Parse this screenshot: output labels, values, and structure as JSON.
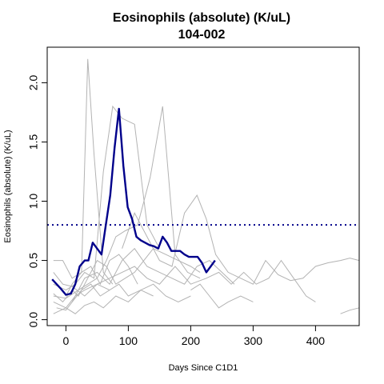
{
  "chart_data": {
    "type": "line",
    "title": "Eosinophils (absolute) (K/uL)",
    "subtitle": "104-002",
    "xlabel": "Days Since C1D1",
    "ylabel": "Eosinophils (absolute) (K/uL)",
    "xlim": [
      -30,
      470
    ],
    "ylim": [
      -0.05,
      2.3
    ],
    "x_ticks": [
      0,
      100,
      200,
      300,
      400
    ],
    "y_ticks": [
      0.0,
      0.5,
      1.0,
      1.5,
      2.0
    ],
    "x_tick_labels": [
      "0",
      "100",
      "200",
      "300",
      "400"
    ],
    "y_tick_labels": [
      "0.0",
      "0.5",
      "1.0",
      "1.5",
      "2.0"
    ],
    "reference_line": {
      "y": 0.8,
      "style": "dotted",
      "color": "#00008B"
    },
    "grid": false,
    "legend": "none",
    "colors": {
      "highlight": "#00008B",
      "background_series": "#b3b3b3",
      "frame": "#000000"
    },
    "highlight_series": {
      "x": [
        -22,
        -8,
        0,
        8,
        15,
        22,
        30,
        36,
        43,
        50,
        57,
        64,
        71,
        78,
        85,
        92,
        99,
        106,
        113,
        120,
        134,
        141,
        148,
        155,
        162,
        169,
        176,
        183,
        190,
        197,
        204,
        211,
        218,
        225,
        232,
        239
      ],
      "y": [
        0.34,
        0.26,
        0.21,
        0.22,
        0.3,
        0.45,
        0.5,
        0.5,
        0.65,
        0.6,
        0.55,
        0.8,
        1.05,
        1.45,
        1.78,
        1.3,
        0.95,
        0.85,
        0.7,
        0.67,
        0.63,
        0.62,
        0.6,
        0.7,
        0.65,
        0.58,
        0.58,
        0.58,
        0.55,
        0.53,
        0.53,
        0.53,
        0.48,
        0.4,
        0.45,
        0.5
      ]
    },
    "background_series": [
      {
        "x": [
          -20,
          -5,
          10,
          25,
          35,
          45,
          60,
          75
        ],
        "y": [
          0.5,
          0.5,
          0.35,
          0.4,
          2.2,
          1.4,
          0.4,
          0.3
        ]
      },
      {
        "x": [
          -20,
          0,
          15,
          30,
          45,
          60,
          75,
          90,
          110,
          130,
          150
        ],
        "y": [
          0.3,
          0.25,
          0.3,
          0.4,
          0.35,
          1.25,
          1.8,
          1.7,
          1.65,
          0.8,
          0.6
        ]
      },
      {
        "x": [
          -20,
          0,
          20,
          35,
          50,
          65,
          80,
          95,
          115,
          135,
          155,
          175,
          195,
          215
        ],
        "y": [
          0.2,
          0.18,
          0.25,
          0.3,
          0.35,
          0.5,
          0.7,
          0.75,
          0.8,
          1.2,
          1.8,
          0.55,
          0.4,
          0.35
        ]
      },
      {
        "x": [
          90,
          110,
          130,
          150,
          170,
          190,
          210,
          225,
          240,
          260,
          280,
          300,
          320,
          340,
          360,
          380,
          400,
          420,
          440,
          455,
          470
        ],
        "y": [
          0.6,
          0.9,
          0.7,
          0.5,
          0.45,
          0.9,
          1.05,
          0.85,
          0.55,
          0.4,
          0.35,
          0.3,
          0.5,
          0.38,
          0.33,
          0.35,
          0.45,
          0.48,
          0.5,
          0.52,
          0.5
        ]
      },
      {
        "x": [
          -20,
          0,
          15,
          30,
          50,
          70,
          90,
          110,
          130,
          150,
          175,
          200,
          225,
          245,
          265,
          285,
          305,
          325,
          345,
          365,
          385,
          400
        ],
        "y": [
          0.15,
          0.1,
          0.2,
          0.25,
          0.3,
          0.35,
          0.4,
          0.45,
          0.35,
          0.3,
          0.45,
          0.3,
          0.35,
          0.4,
          0.3,
          0.4,
          0.3,
          0.35,
          0.5,
          0.35,
          0.2,
          0.15
        ]
      },
      {
        "x": [
          -20,
          -5,
          10,
          20,
          35,
          50,
          65,
          80,
          95,
          110,
          125,
          140,
          160,
          180,
          200,
          215
        ],
        "y": [
          0.22,
          0.15,
          0.25,
          0.2,
          0.35,
          0.5,
          0.45,
          0.3,
          0.35,
          0.4,
          0.5,
          0.6,
          0.55,
          0.5,
          0.45,
          0.4
        ]
      },
      {
        "x": [
          -15,
          0,
          10,
          25,
          40,
          55,
          70,
          85,
          100,
          120,
          140,
          160,
          180,
          200
        ],
        "y": [
          0.1,
          0.08,
          0.15,
          0.25,
          0.3,
          0.2,
          0.25,
          0.3,
          0.2,
          0.25,
          0.3,
          0.2,
          0.15,
          0.2
        ]
      },
      {
        "x": [
          0,
          10,
          25,
          40,
          55,
          70,
          85,
          100,
          115
        ],
        "y": [
          0.2,
          0.3,
          0.4,
          0.45,
          0.3,
          0.5,
          0.55,
          0.45,
          0.3
        ]
      },
      {
        "x": [
          -20,
          0,
          15,
          30,
          45,
          60,
          80,
          100,
          120,
          140
        ],
        "y": [
          0.05,
          0.1,
          0.05,
          0.12,
          0.15,
          0.1,
          0.2,
          0.15,
          0.25,
          0.2
        ]
      },
      {
        "x": [
          10,
          30,
          50,
          70,
          90,
          110,
          130,
          150,
          170,
          190,
          210,
          230,
          250,
          270
        ],
        "y": [
          0.15,
          0.35,
          0.4,
          0.3,
          0.5,
          0.6,
          0.45,
          0.4,
          0.35,
          0.3,
          0.45,
          0.5,
          0.4,
          0.3
        ]
      },
      {
        "x": [
          200,
          215,
          230,
          245,
          260,
          280,
          300
        ],
        "y": [
          0.25,
          0.3,
          0.2,
          0.1,
          0.15,
          0.2,
          0.15
        ]
      },
      {
        "x": [
          -20,
          -5,
          10,
          30,
          50,
          70
        ],
        "y": [
          0.4,
          0.3,
          0.28,
          0.2,
          0.3,
          0.25
        ]
      },
      {
        "x": [
          440,
          455,
          470
        ],
        "y": [
          0.05,
          0.08,
          0.1
        ]
      }
    ]
  }
}
